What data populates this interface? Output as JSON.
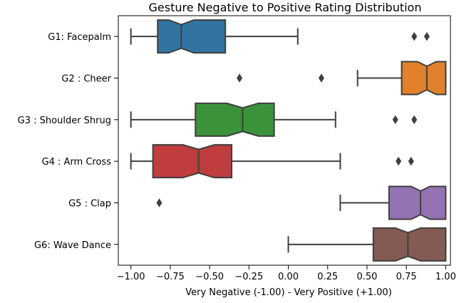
{
  "chart_data": {
    "type": "box",
    "orientation": "horizontal",
    "notched": true,
    "title": "Gesture Negative to Positive Rating Distribution",
    "xlabel": "Very Negative (-1.00)  - Very Positive (+1.00)",
    "ylabel": "",
    "xlim": [
      -1.08,
      1.03
    ],
    "xticks": [
      -1.0,
      -0.75,
      -0.5,
      -0.25,
      0.0,
      0.25,
      0.5,
      0.75,
      1.0
    ],
    "xtick_labels": [
      "−1.00",
      "−0.75",
      "−0.50",
      "−0.25",
      "0.00",
      "0.25",
      "0.50",
      "0.75",
      "1.00"
    ],
    "grid": false,
    "categories": [
      "G1: Facepalm",
      "G2 : Cheer",
      "G3 : Shoulder Shrug",
      "G4 : Arm Cross",
      "G5 : Clap",
      "G6: Wave Dance"
    ],
    "boxes": [
      {
        "whisker_low": -1.0,
        "q1": -0.83,
        "median": -0.68,
        "q3": -0.4,
        "whisker_high": 0.06,
        "notch_low": -0.76,
        "notch_high": -0.6,
        "outliers": [
          0.8,
          0.88
        ],
        "color": "#3274a1"
      },
      {
        "whisker_low": 0.44,
        "q1": 0.72,
        "median": 0.88,
        "q3": 1.0,
        "whisker_high": 1.0,
        "notch_low": 0.82,
        "notch_high": 0.94,
        "outliers": [
          -0.31,
          0.21
        ],
        "color": "#e1812c"
      },
      {
        "whisker_low": -1.0,
        "q1": -0.59,
        "median": -0.29,
        "q3": -0.09,
        "whisker_high": 0.3,
        "notch_low": -0.39,
        "notch_high": -0.19,
        "outliers": [
          0.68,
          0.8
        ],
        "color": "#3a923a"
      },
      {
        "whisker_low": -1.0,
        "q1": -0.86,
        "median": -0.57,
        "q3": -0.36,
        "whisker_high": 0.33,
        "notch_low": -0.67,
        "notch_high": -0.47,
        "outliers": [
          0.7,
          0.78
        ],
        "color": "#c03d3e"
      },
      {
        "whisker_low": 0.33,
        "q1": 0.64,
        "median": 0.84,
        "q3": 1.0,
        "whisker_high": 1.0,
        "notch_low": 0.78,
        "notch_high": 0.9,
        "outliers": [
          -0.82
        ],
        "color": "#9372b2"
      },
      {
        "whisker_low": 0.0,
        "q1": 0.54,
        "median": 0.76,
        "q3": 1.0,
        "whisker_high": 1.0,
        "notch_low": 0.68,
        "notch_high": 0.84,
        "outliers": [],
        "color": "#845b53"
      }
    ]
  }
}
